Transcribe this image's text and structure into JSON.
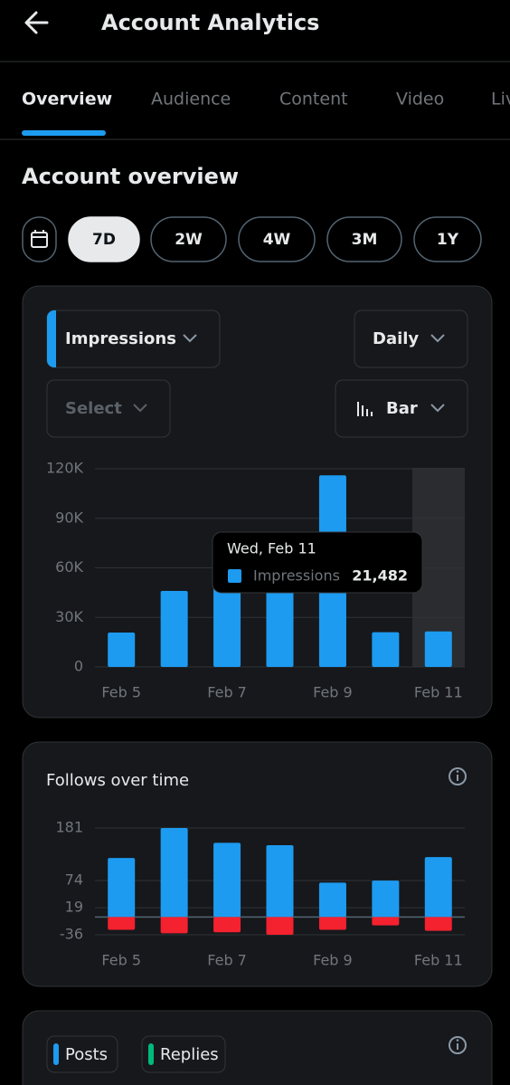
{
  "header": {
    "title": "Account Analytics"
  },
  "tabs": [
    "Overview",
    "Audience",
    "Content",
    "Video",
    "Live"
  ],
  "section_title": "Account overview",
  "ranges": [
    "7D",
    "2W",
    "4W",
    "3M",
    "1Y"
  ],
  "controls": {
    "metric": "Impressions",
    "interval": "Daily",
    "compare": "Select",
    "chart_kind": "Bar"
  },
  "chart_data": [
    {
      "type": "bar",
      "categories": [
        "Feb 5",
        null,
        "Feb 7",
        null,
        "Feb 9",
        null,
        "Feb 11"
      ],
      "series": [
        {
          "name": "Impressions",
          "color": "#1d9bf0",
          "values": [
            20800,
            46000,
            48000,
            47000,
            116000,
            21000,
            21482
          ]
        }
      ],
      "ylim": [
        0,
        120000
      ],
      "yticks": [
        0,
        {
          "value": 30000,
          "label": "30K"
        },
        {
          "value": 60000,
          "label": "60K"
        },
        {
          "value": 90000,
          "label": "90K"
        },
        {
          "value": 120000,
          "label": "120K"
        }
      ],
      "grid": true,
      "tooltip": {
        "title": "Wed, Feb 11",
        "value_label": "21,482"
      }
    },
    {
      "type": "stacked-bar",
      "title": "Follows over time",
      "categories": [
        "Feb 5",
        null,
        "Feb 7",
        null,
        "Feb 9",
        null,
        "Feb 11"
      ],
      "series": [
        {
          "color": "#1d9bf0",
          "values": [
            120,
            181,
            151,
            146,
            70,
            74,
            122
          ]
        },
        {
          "color": "#f4212e",
          "values": [
            -26,
            -33,
            -31,
            -36,
            -26,
            -17,
            -28
          ]
        }
      ],
      "ylim": [
        -36,
        181
      ],
      "yticks": [
        -36,
        19,
        74,
        181
      ],
      "grid": true
    }
  ],
  "posts_card": {
    "chips": [
      "Posts",
      "Replies"
    ]
  }
}
